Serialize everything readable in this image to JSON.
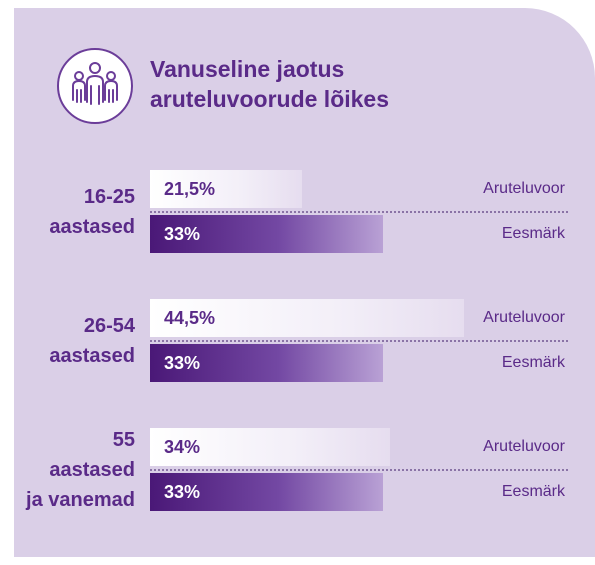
{
  "title": "Vanuseline jaotus aruteluvoorude lõikes",
  "chart_data": {
    "type": "bar",
    "categories": [
      [
        "16-25",
        "aastased"
      ],
      [
        "26-54",
        "aastased"
      ],
      [
        "55",
        "aastased",
        "ja vanemad"
      ]
    ],
    "series": [
      {
        "name": "Aruteluvoor",
        "color": "#ffffff",
        "values": [
          21.5,
          44.5,
          34
        ],
        "value_labels": [
          "21,5%",
          "44,5%",
          "34%"
        ]
      },
      {
        "name": "Eesmärk",
        "color": "#4a1877",
        "values": [
          33,
          33,
          33
        ],
        "value_labels": [
          "33%",
          "33%",
          "33%"
        ]
      }
    ]
  }
}
